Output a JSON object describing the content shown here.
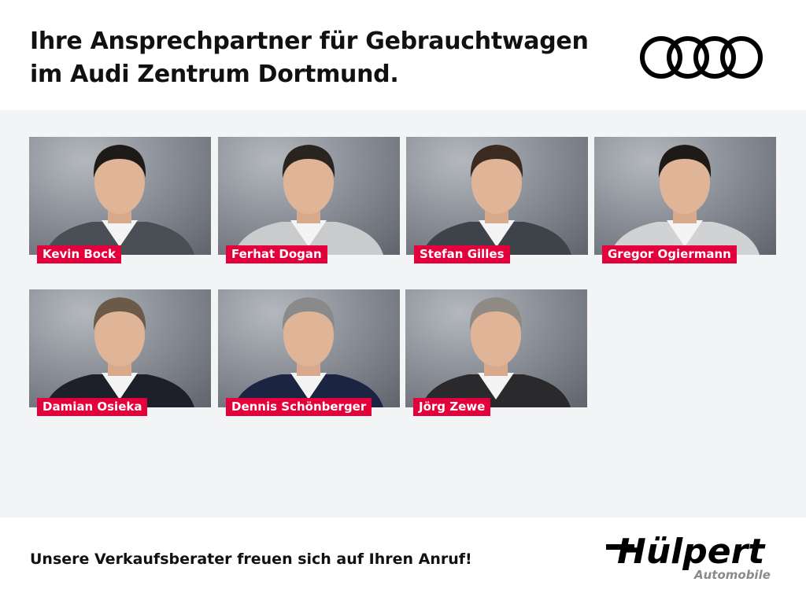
{
  "header": {
    "title_line1": "Ihre Ansprechpartner für Gebrauchtwagen",
    "title_line2": "im Audi Zentrum Dortmund.",
    "brand_logo": "Audi four rings"
  },
  "contacts": [
    {
      "name": "Kevin Bock",
      "jacket": "#4a4f55",
      "hair": "#1e1a17"
    },
    {
      "name": "Ferhat Dogan",
      "jacket": "#c9cbcd",
      "hair": "#2a2420"
    },
    {
      "name": "Stefan Gilles",
      "jacket": "#3e434a",
      "hair": "#3a2a20"
    },
    {
      "name": "Gregor Ogiermann",
      "jacket": "#d0d2d4",
      "hair": "#1e1a17"
    },
    {
      "name": "Damian Osieka",
      "jacket": "#1d1f2a",
      "hair": "#6a5a48"
    },
    {
      "name": "Dennis Schönberger",
      "jacket": "#1b2440",
      "hair": "#8a8a8a"
    },
    {
      "name": "Jörg Zewe",
      "jacket": "#2a2a2c",
      "hair": "#8f8a84"
    }
  ],
  "footer": {
    "slogan": "Unsere Verkaufsberater freuen sich auf Ihren Anruf!",
    "logo_main": "Hülpert",
    "logo_sub": "Automobile"
  },
  "colors": {
    "accent": "#e4003a",
    "background": "#f3f4f6"
  }
}
